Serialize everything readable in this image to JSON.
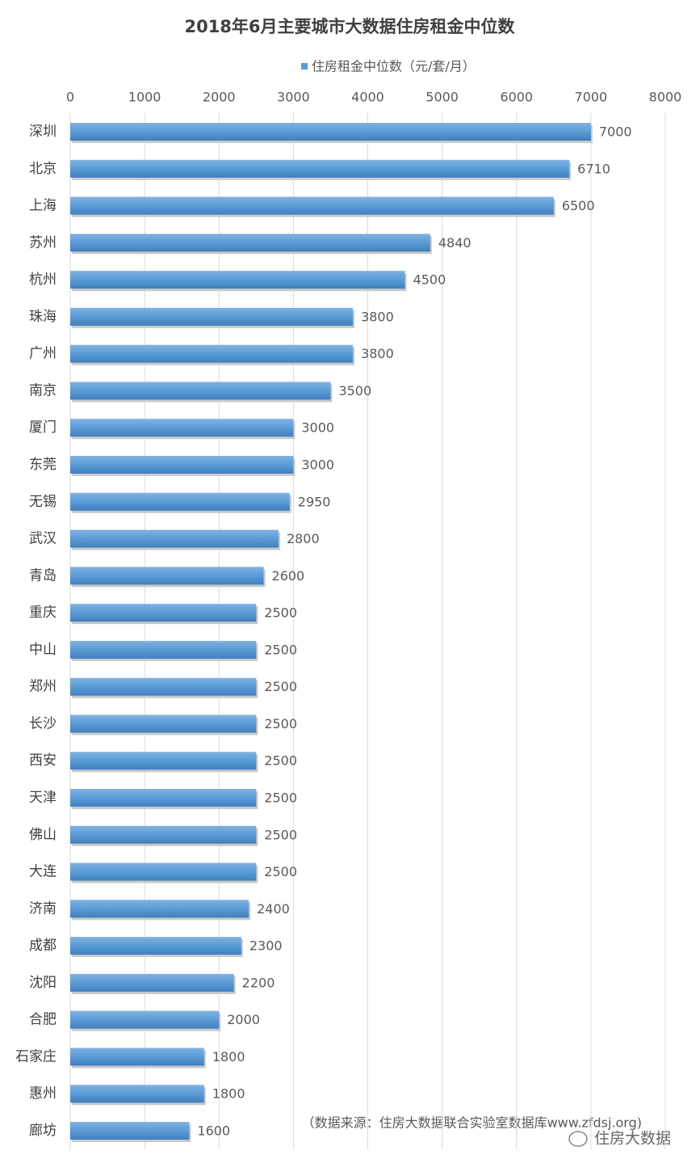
{
  "chart_data": {
    "type": "bar",
    "orientation": "horizontal",
    "title": "2018年6月主要城市大数据住房租金中位数",
    "categories": [
      "深圳",
      "北京",
      "上海",
      "苏州",
      "杭州",
      "珠海",
      "广州",
      "南京",
      "厦门",
      "东莞",
      "无锡",
      "武汉",
      "青岛",
      "重庆",
      "中山",
      "郑州",
      "长沙",
      "西安",
      "天津",
      "佛山",
      "大连",
      "济南",
      "成都",
      "沈阳",
      "合肥",
      "石家庄",
      "惠州",
      "廊坊"
    ],
    "series": [
      {
        "name": "住房租金中位数（元/套/月）",
        "color": "#5b9bd5",
        "values": [
          7000,
          6710,
          6500,
          4840,
          4500,
          3800,
          3800,
          3500,
          3000,
          3000,
          2950,
          2800,
          2600,
          2500,
          2500,
          2500,
          2500,
          2500,
          2500,
          2500,
          2500,
          2400,
          2300,
          2200,
          2000,
          1800,
          1800,
          1600
        ]
      }
    ],
    "xlim": [
      0,
      8000
    ],
    "xticks": [
      0,
      1000,
      2000,
      3000,
      4000,
      5000,
      6000,
      7000,
      8000
    ],
    "grid": true,
    "legend": "top",
    "source": "（数据来源：住房大数据联合实验室数据库www.zfdsj.org)",
    "watermark": "住房大数据"
  }
}
